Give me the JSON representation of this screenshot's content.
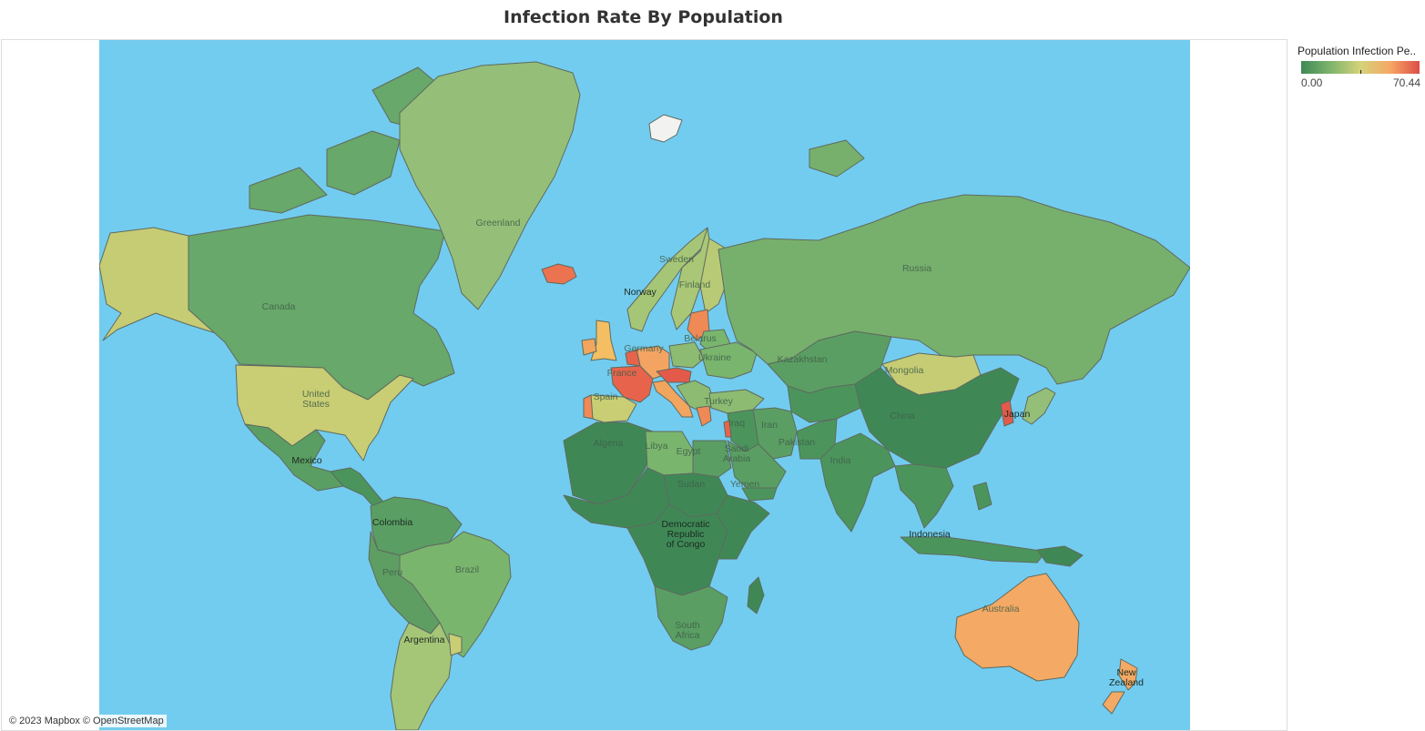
{
  "title": "Infection Rate By Population",
  "legend": {
    "title": "Population Infection Pe..",
    "min_label": "0.00",
    "max_label": "70.44",
    "min_value": 0,
    "max_value": 70.44,
    "colors": [
      "#3e8a56",
      "#7fb46c",
      "#d4d37a",
      "#f6a864",
      "#dc4d48"
    ]
  },
  "ocean_color": "#72ccef",
  "attribution": "© 2023 Mapbox © OpenStreetMap",
  "countries": [
    {
      "name": "alaska",
      "label": "",
      "fill": "#c6cc74",
      "shape": "alaska"
    },
    {
      "name": "canada",
      "label": "Canada",
      "fill": "#68a86a",
      "shape": "canada"
    },
    {
      "name": "united-states",
      "label": "United\nStates",
      "fill": "#c9cd74",
      "shape": "usa"
    },
    {
      "name": "mexico",
      "label": "Mexico",
      "fill": "#5a9e63",
      "shape": "mexico"
    },
    {
      "name": "central-america",
      "label": "",
      "fill": "#4b955c",
      "shape": "centralam"
    },
    {
      "name": "greenland",
      "label": "Greenland",
      "fill": "#95bf78",
      "shape": "greenland"
    },
    {
      "name": "iceland",
      "label": "",
      "fill": "#ec7350",
      "shape": "iceland"
    },
    {
      "name": "colombia-venezuela",
      "label": "Colombia",
      "fill": "#5a9e63",
      "shape": "northsa"
    },
    {
      "name": "brazil",
      "label": "Brazil",
      "fill": "#7ab56e",
      "shape": "brazil"
    },
    {
      "name": "peru-bolivia",
      "label": "Peru",
      "fill": "#5e9e63",
      "shape": "westsa"
    },
    {
      "name": "argentina-chile",
      "label": "Argentina",
      "fill": "#a6c677",
      "shape": "southsa"
    },
    {
      "name": "uruguay",
      "label": "",
      "fill": "#c9cd74",
      "shape": "uruguay"
    },
    {
      "name": "united-kingdom",
      "label": "",
      "fill": "#f4be62",
      "shape": "uk"
    },
    {
      "name": "ireland",
      "label": "",
      "fill": "#f1a55e",
      "shape": "ireland"
    },
    {
      "name": "france",
      "label": "France",
      "fill": "#e7634c",
      "shape": "france"
    },
    {
      "name": "spain",
      "label": "Spain",
      "fill": "#c9cd74",
      "shape": "spain"
    },
    {
      "name": "portugal",
      "label": "",
      "fill": "#ef8a56",
      "shape": "portugal"
    },
    {
      "name": "germany",
      "label": "Germany",
      "fill": "#f4a462",
      "shape": "germany"
    },
    {
      "name": "benelux",
      "label": "",
      "fill": "#e7634c",
      "shape": "benelux"
    },
    {
      "name": "italy",
      "label": "",
      "fill": "#f1a55e",
      "shape": "italy"
    },
    {
      "name": "poland",
      "label": "",
      "fill": "#8dbb72",
      "shape": "poland"
    },
    {
      "name": "austria-czech",
      "label": "",
      "fill": "#e35a4a",
      "shape": "centraleu"
    },
    {
      "name": "balkans",
      "label": "",
      "fill": "#8dbb72",
      "shape": "balkans"
    },
    {
      "name": "greece",
      "label": "",
      "fill": "#ef8a56",
      "shape": "greece"
    },
    {
      "name": "norway",
      "label": "Norway",
      "fill": "#a6c677",
      "shape": "norway"
    },
    {
      "name": "sweden",
      "label": "Sweden",
      "fill": "#a9c777",
      "shape": "sweden"
    },
    {
      "name": "finland",
      "label": "Finland",
      "fill": "#b9ca76",
      "shape": "finland"
    },
    {
      "name": "baltics",
      "label": "",
      "fill": "#ef8a56",
      "shape": "baltics"
    },
    {
      "name": "belarus",
      "label": "Belarus",
      "fill": "#7ab56e",
      "shape": "belarus"
    },
    {
      "name": "ukraine",
      "label": "Ukraine",
      "fill": "#7ab56e",
      "shape": "ukraine"
    },
    {
      "name": "turkey",
      "label": "Turkey",
      "fill": "#8dbb72",
      "shape": "turkey"
    },
    {
      "name": "russia",
      "label": "Russia",
      "fill": "#77b06d",
      "shape": "russia"
    },
    {
      "name": "kazakhstan",
      "label": "Kazakhstan",
      "fill": "#5a9e63",
      "shape": "kazakhstan"
    },
    {
      "name": "mongolia",
      "label": "Mongolia",
      "fill": "#c6cc74",
      "shape": "mongolia"
    },
    {
      "name": "china",
      "label": "China",
      "fill": "#3f8856",
      "shape": "china"
    },
    {
      "name": "south-korea",
      "label": "",
      "fill": "#e35a4a",
      "shape": "korea"
    },
    {
      "name": "japan",
      "label": "Japan",
      "fill": "#95bf78",
      "shape": "japan"
    },
    {
      "name": "central-asia",
      "label": "",
      "fill": "#4b955c",
      "shape": "centralasia"
    },
    {
      "name": "iran",
      "label": "Iran",
      "fill": "#5a9e63",
      "shape": "iran"
    },
    {
      "name": "iraq-syria",
      "label": "Iraq",
      "fill": "#4b955c",
      "shape": "iraq"
    },
    {
      "name": "israel",
      "label": "",
      "fill": "#e7634c",
      "shape": "israel"
    },
    {
      "name": "saudi-arabia",
      "label": "Saudi\nArabia",
      "fill": "#5a9e63",
      "shape": "arabia"
    },
    {
      "name": "yemen",
      "label": "Yemen",
      "fill": "#4b955c",
      "shape": "yemen"
    },
    {
      "name": "pakistan",
      "label": "Pakistan",
      "fill": "#4b955c",
      "shape": "pakistan"
    },
    {
      "name": "india",
      "label": "India",
      "fill": "#4b955c",
      "shape": "india"
    },
    {
      "name": "southeast-asia",
      "label": "",
      "fill": "#4b955c",
      "shape": "seasia"
    },
    {
      "name": "indonesia",
      "label": "Indonesia",
      "fill": "#4b955c",
      "shape": "indonesia"
    },
    {
      "name": "papua-new-guinea",
      "label": "",
      "fill": "#3f8856",
      "shape": "png"
    },
    {
      "name": "philippines",
      "label": "",
      "fill": "#4b955c",
      "shape": "philippines"
    },
    {
      "name": "australia",
      "label": "Australia",
      "fill": "#f4a964",
      "shape": "australia"
    },
    {
      "name": "new-zealand",
      "label": "New\nZealand",
      "fill": "#f4a964",
      "shape": "newzealand"
    },
    {
      "name": "algeria",
      "label": "Algeria",
      "fill": "#3f8856",
      "shape": "algeria"
    },
    {
      "name": "libya",
      "label": "Libya",
      "fill": "#7ab56e",
      "shape": "libya"
    },
    {
      "name": "egypt",
      "label": "Egypt",
      "fill": "#5a9e63",
      "shape": "egypt"
    },
    {
      "name": "sudan",
      "label": "Sudan",
      "fill": "#3f8856",
      "shape": "sudan"
    },
    {
      "name": "west-africa",
      "label": "",
      "fill": "#3f8856",
      "shape": "westafrica"
    },
    {
      "name": "dr-congo",
      "label": "Democratic\nRepublic\nof Congo",
      "fill": "#3f8856",
      "shape": "centralafrica"
    },
    {
      "name": "east-africa",
      "label": "",
      "fill": "#3f8856",
      "shape": "eastafrica"
    },
    {
      "name": "southern-africa",
      "label": "South\nAfrica",
      "fill": "#5a9e63",
      "shape": "southafrica"
    },
    {
      "name": "madagascar",
      "label": "",
      "fill": "#3f8856",
      "shape": "madagascar"
    },
    {
      "name": "svalbard",
      "label": "",
      "fill": "#f2f2f0",
      "shape": "svalbard"
    }
  ]
}
